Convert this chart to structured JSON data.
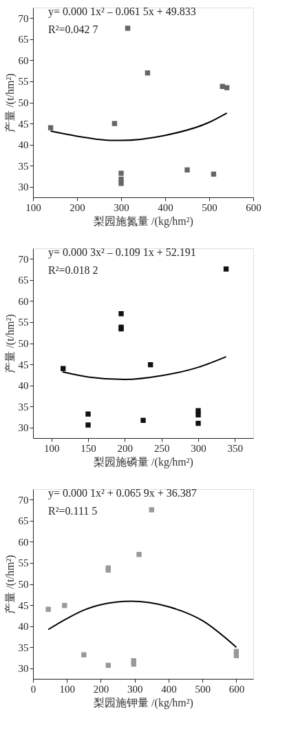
{
  "chart_data": [
    {
      "type": "scatter",
      "xlabel": "梨园施氮量 /(kg/hm²)",
      "ylabel": "产量 /(t/hm²)",
      "xlim": [
        100,
        600
      ],
      "xticks": [
        100,
        200,
        300,
        400,
        500,
        600
      ],
      "ylim": [
        27.5,
        72.5
      ],
      "yticks": [
        30,
        35,
        40,
        45,
        50,
        55,
        60,
        65,
        70
      ],
      "grid": false,
      "annotations": [
        "y= 0.000 1x² – 0.061 5x + 49.833",
        "R²=0.042 7"
      ],
      "series": [
        {
          "color": "#666666",
          "marker": "square",
          "x": [
            140,
            285,
            315,
            360,
            300,
            300,
            300,
            450,
            510,
            530,
            540
          ],
          "values": [
            44,
            45,
            67.6,
            57,
            33.2,
            31.8,
            30.8,
            34,
            33,
            53.8,
            53.5
          ]
        },
        {
          "type": "line",
          "line_style": "solid",
          "color": "#000000",
          "x": [
            140,
            200,
            280,
            300,
            400,
            500,
            540
          ],
          "values": [
            43.2,
            42,
            41,
            41,
            42.2,
            45.3,
            47.5
          ]
        }
      ]
    },
    {
      "type": "scatter",
      "xlabel": "梨园施磷量 /(kg/hm²)",
      "ylabel": "产量 /(t/hm²)",
      "xlim": [
        75,
        375
      ],
      "xticks": [
        100,
        150,
        200,
        250,
        300,
        350
      ],
      "ylim": [
        27.5,
        72.5
      ],
      "yticks": [
        30,
        35,
        40,
        45,
        50,
        55,
        60,
        65,
        70
      ],
      "grid": false,
      "annotations": [
        "y= 0.000 3x² – 0.109 1x + 52.191",
        "R²=0.018 2"
      ],
      "series": [
        {
          "color": "#111111",
          "marker": "square",
          "x": [
            116,
            150,
            150,
            195,
            195,
            195,
            225,
            235,
            300,
            300,
            300,
            338
          ],
          "values": [
            44,
            33.2,
            30.6,
            57,
            53.8,
            53.4,
            31.7,
            44.9,
            34,
            33,
            31,
            67.6
          ]
        },
        {
          "type": "line",
          "line_style": "solid",
          "color": "#000000",
          "x": [
            115,
            150,
            200,
            250,
            300,
            338
          ],
          "values": [
            43.2,
            42,
            41.4,
            42.3,
            44.3,
            46.8
          ]
        }
      ]
    },
    {
      "type": "scatter",
      "xlabel": "梨园施钾量 /(kg/hm²)",
      "ylabel": "产量 /(t/hm²)",
      "xlim": [
        0,
        650
      ],
      "xticks": [
        0,
        100,
        200,
        300,
        400,
        500,
        600
      ],
      "ylim": [
        27.5,
        72.5
      ],
      "yticks": [
        30,
        35,
        40,
        45,
        50,
        55,
        60,
        65,
        70
      ],
      "grid": false,
      "annotations": [
        "y= 0.000 1x² + 0.065 9x + 36.387",
        "R²=0.111 5"
      ],
      "series": [
        {
          "color": "#999999",
          "marker": "square",
          "x": [
            45,
            93,
            150,
            222,
            222,
            222,
            297,
            297,
            313,
            350,
            600,
            600
          ],
          "values": [
            44,
            44.9,
            33.2,
            53.8,
            53.3,
            30.7,
            31.8,
            31,
            57,
            67.6,
            34,
            33
          ]
        },
        {
          "type": "line",
          "line_style": "solid",
          "color": "#000000",
          "x": [
            45,
            100,
            150,
            200,
            290,
            400,
            500,
            600
          ],
          "values": [
            39.2,
            41.8,
            43.8,
            45.1,
            45.9,
            44.6,
            41.3,
            35
          ]
        }
      ]
    }
  ]
}
